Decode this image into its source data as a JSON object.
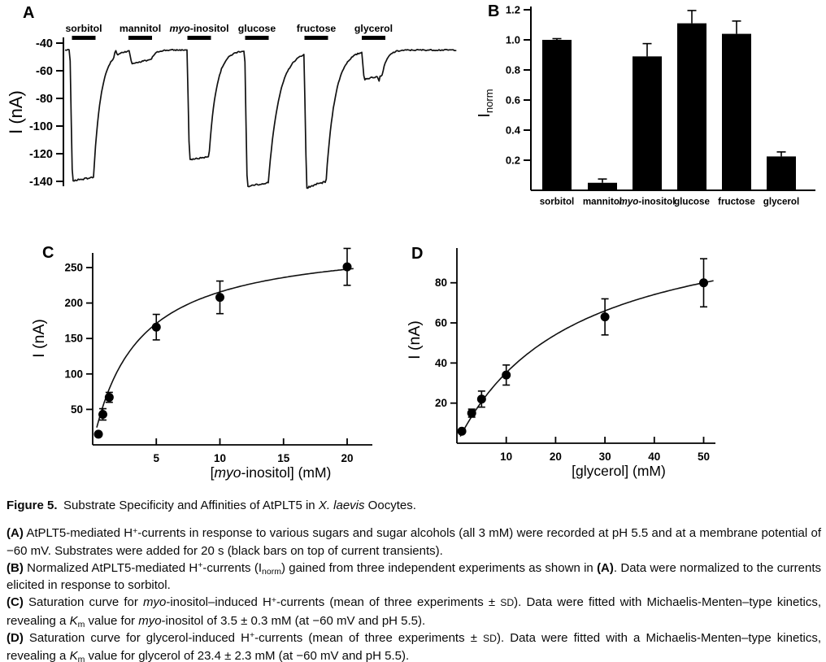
{
  "chart_data": [
    {
      "panel_label": "A",
      "type": "line",
      "subtype": "current_trace",
      "ylabel": "I (nA)",
      "yticks": [
        -40,
        -60,
        -80,
        -100,
        -120,
        -140
      ],
      "baseline_nA": -45,
      "substrate_concentration_mM": 3,
      "application_duration_s": 20,
      "substrates": [
        {
          "label": "sorbitol",
          "peak_nA": -137
        },
        {
          "label": "mannitol",
          "peak_nA": -52
        },
        {
          "label": "*myo*-inositol",
          "peak_nA": -122
        },
        {
          "label": "glucose",
          "peak_nA": -141
        },
        {
          "label": "fructose",
          "peak_nA": -140
        },
        {
          "label": "glycerol",
          "peak_nA": -63
        }
      ]
    },
    {
      "panel_label": "B",
      "type": "bar",
      "ylabel": "I~norm~",
      "categories": [
        "sorbitol",
        "mannitol",
        "*myo*-inositol",
        "glucose",
        "fructose",
        "glycerol"
      ],
      "values": [
        1.0,
        0.05,
        0.89,
        1.11,
        1.04,
        0.225
      ],
      "errors_upper": [
        0.008,
        0.025,
        0.085,
        0.085,
        0.085,
        0.03
      ],
      "yticks": [
        0.2,
        0.4,
        0.6,
        0.8,
        1.0,
        1.2
      ],
      "ylim": [
        0,
        1.2
      ],
      "bar_color": "#000000"
    },
    {
      "panel_label": "C",
      "type": "scatter",
      "xlabel": "[*myo*-inositol] (mM)",
      "ylabel": "I (nA)",
      "x": [
        0.45,
        0.8,
        1.3,
        5,
        10,
        20
      ],
      "y": [
        15,
        43,
        67,
        166,
        208,
        251
      ],
      "yerr": [
        3,
        8,
        7,
        18,
        23,
        26
      ],
      "xticks": [
        5,
        10,
        15,
        20
      ],
      "yticks": [
        50,
        100,
        150,
        200,
        250
      ],
      "xlim": [
        0,
        20.5
      ],
      "ylim": [
        0,
        275
      ],
      "fit": {
        "model": "Michaelis-Menten",
        "Km_mM": 3.5,
        "Imax_nA": 291
      }
    },
    {
      "panel_label": "D",
      "type": "scatter",
      "xlabel": "[glycerol] (mM)",
      "ylabel": "I (nA)",
      "x": [
        1,
        3,
        5,
        10,
        30,
        50
      ],
      "y": [
        6,
        15,
        22,
        34,
        63,
        80
      ],
      "yerr": [
        1,
        2,
        4,
        5,
        9,
        12
      ],
      "xticks": [
        10,
        20,
        30,
        40,
        50
      ],
      "yticks": [
        20,
        40,
        60,
        80
      ],
      "xlim": [
        0,
        52
      ],
      "ylim": [
        0,
        95
      ],
      "fit": {
        "model": "Michaelis-Menten",
        "Km_mM": 23.4,
        "Imax_nA": 117.5
      }
    }
  ],
  "caption": {
    "title": "**Figure 5.** Substrate Specificity and Affinities of AtPLT5 in *X. laevis* Oocytes.",
    "paragraphs": [
      "**(A)** AtPLT5-mediated H^+^-currents in response to various sugars and sugar alcohols (all 3 mM) were recorded at pH 5.5 and at a membrane potential of −60 mV. Substrates were added for 20 s (black bars on top of current transients).",
      "**(B)** Normalized AtPLT5-mediated H^+^-currents (I~norm~) gained from three independent experiments as shown in **(A)**. Data were normalized to the currents elicited in response to sorbitol.",
      "**(C)** Saturation curve for *myo*-inositol–induced H^+^-currents (mean of three experiments ± §SD§). Data were fitted with Michaelis-Menten–type kinetics, revealing a *K*~m~ value for *myo*-inositol of 3.5 ± 0.3 mM (at −60 mV and pH 5.5).",
      "**(D)** Saturation curve for glycerol-induced H^+^-currents (mean of three experiments ± §SD§). Data were fitted with a Michaelis-Menten–type kinetics, revealing a *K*~m~ value for glycerol of 23.4 ± 2.3 mM (at −60 mV and pH 5.5)."
    ]
  }
}
